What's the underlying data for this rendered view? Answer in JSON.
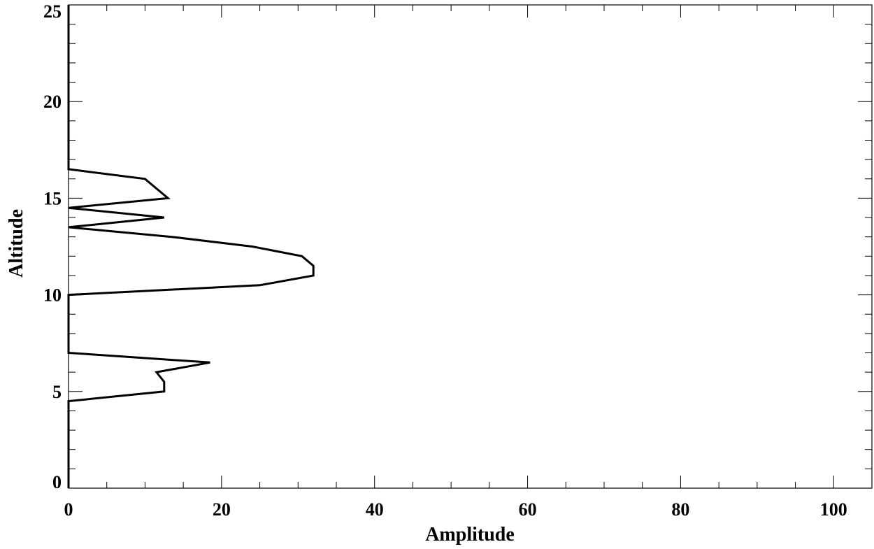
{
  "chart_data": {
    "type": "line",
    "title": "",
    "xlabel": "Amplitude",
    "ylabel": "Altitude",
    "xlim": [
      0,
      105
    ],
    "ylim": [
      0,
      25
    ],
    "x_ticks": [
      "0",
      "20",
      "40",
      "60",
      "80",
      "100"
    ],
    "y_ticks": [
      "0",
      "5",
      "10",
      "15",
      "20",
      "25"
    ],
    "grid": false,
    "line_color": "#000000",
    "series": [
      {
        "points": [
          {
            "x": 0,
            "y": 0
          },
          {
            "x": 0,
            "y": 4.5
          },
          {
            "x": 12.5,
            "y": 5.0
          },
          {
            "x": 12.5,
            "y": 5.5
          },
          {
            "x": 11.5,
            "y": 6.0
          },
          {
            "x": 18.5,
            "y": 6.5
          },
          {
            "x": 0,
            "y": 7.0
          },
          {
            "x": 0,
            "y": 10.0
          },
          {
            "x": 25.0,
            "y": 10.5
          },
          {
            "x": 32.0,
            "y": 11.0
          },
          {
            "x": 32.0,
            "y": 11.5
          },
          {
            "x": 30.5,
            "y": 12.0
          },
          {
            "x": 24.0,
            "y": 12.5
          },
          {
            "x": 13.5,
            "y": 13.0
          },
          {
            "x": 0,
            "y": 13.5
          },
          {
            "x": 12.5,
            "y": 14.0
          },
          {
            "x": 0,
            "y": 14.5
          },
          {
            "x": 13.0,
            "y": 15.0
          },
          {
            "x": 11.5,
            "y": 15.5
          },
          {
            "x": 10.0,
            "y": 16.0
          },
          {
            "x": 0,
            "y": 16.5
          },
          {
            "x": 0,
            "y": 25.0
          }
        ]
      }
    ]
  }
}
